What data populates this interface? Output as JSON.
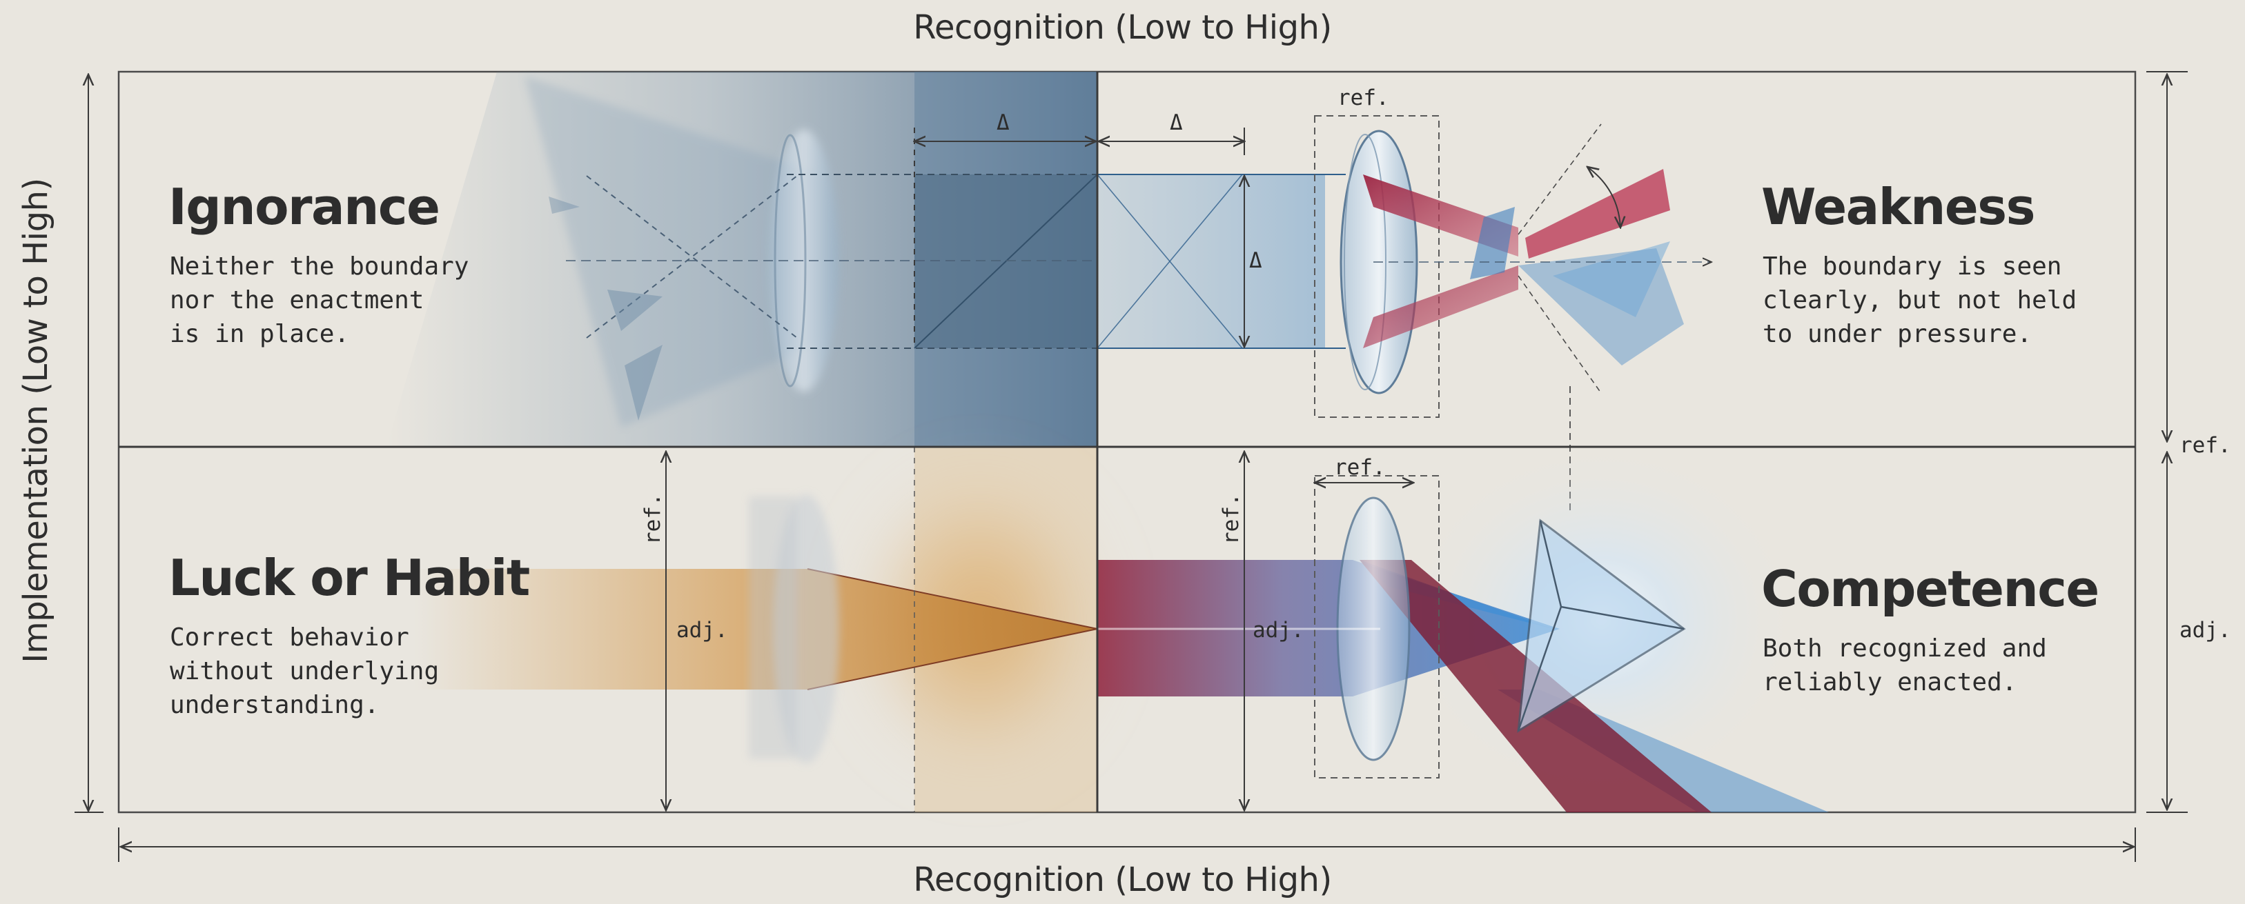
{
  "axes": {
    "top": "Recognition (Low to High)",
    "bottom": "Recognition (Low to High)",
    "left": "Implementation (Low to High)"
  },
  "quadrants": {
    "ignorance": {
      "title": "Ignorance",
      "desc": "Neither the boundary\nnor the enactment\nis in place."
    },
    "weakness": {
      "title": "Weakness",
      "desc": "The boundary is seen\nclearly, but not held\nto under pressure."
    },
    "luck": {
      "title": "Luck or Habit",
      "desc": "Correct behavior\nwithout underlying\nunderstanding."
    },
    "competence": {
      "title": "Competence",
      "desc": "Both recognized and\nreliably enacted."
    }
  },
  "annotations": {
    "ref": "ref.",
    "adj": "adj.",
    "delta": "Δ"
  },
  "colors": {
    "background": "#e9e6df",
    "ignorance_blue": "#5b7d9c",
    "weakness_blue": "#4f8ec8",
    "luck_amber": "#c98c3a",
    "crimson": "#8e1f3a",
    "competence_blue": "#3f8fd6",
    "line": "#3a3a3a"
  }
}
